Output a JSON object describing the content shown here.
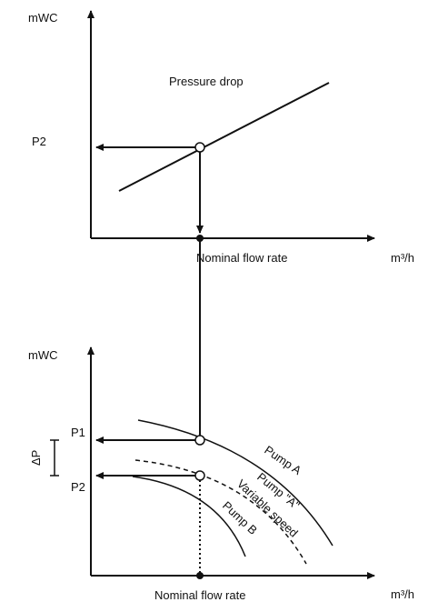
{
  "top_chart": {
    "y_unit": "mWC",
    "x_unit": "m³/h",
    "curve_label": "Pressure drop",
    "p2_label": "P2",
    "x_axis_label": "Nominal flow rate"
  },
  "bottom_chart": {
    "y_unit": "mWC",
    "x_unit": "m³/h",
    "p1_label": "P1",
    "p2_label": "P2",
    "delta_label": "ΔP",
    "x_axis_label": "Nominal flow rate",
    "curves": [
      {
        "label": "Pump A"
      },
      {
        "label": "Pump \"A\""
      },
      {
        "label": "Variable speed"
      },
      {
        "label": "Pump B"
      }
    ]
  },
  "colors": {
    "line": "#111111",
    "background": "#ffffff"
  }
}
